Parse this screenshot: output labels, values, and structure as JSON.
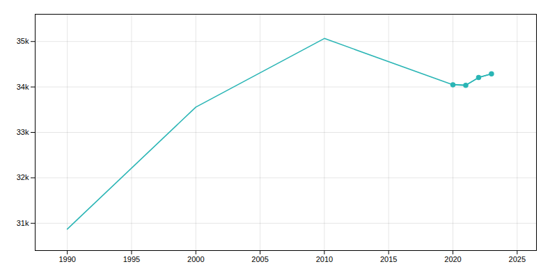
{
  "chart_data": {
    "type": "line",
    "x": [
      1990,
      2000,
      2010,
      2020,
      2021,
      2022,
      2023
    ],
    "series": [
      {
        "color": "#2AB5B5",
        "values": [
          30872,
          33557,
          35067,
          34049,
          34038,
          34207,
          34288
        ]
      },
      {
        "color": "#2AB5B5",
        "marker": "o",
        "values": [
          null,
          null,
          null,
          34049,
          34038,
          34207,
          34288
        ]
      }
    ],
    "xlim": [
      1987.5,
      2026.5
    ],
    "ylim": [
      30400,
      35600
    ],
    "xticks": [
      1990,
      1995,
      2000,
      2005,
      2010,
      2015,
      2020,
      2025
    ],
    "yticks": [
      {
        "value": 31000,
        "label": "31k"
      },
      {
        "value": 32000,
        "label": "32k"
      },
      {
        "value": 33000,
        "label": "33k"
      },
      {
        "value": 34000,
        "label": "34k"
      },
      {
        "value": 35000,
        "label": "35k"
      }
    ],
    "grid": true
  }
}
